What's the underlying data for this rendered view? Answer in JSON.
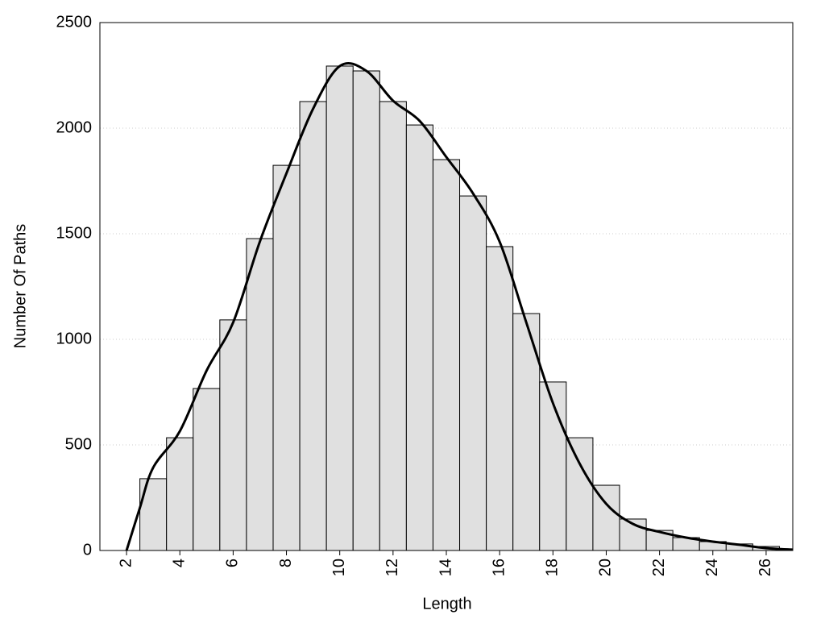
{
  "chart_data": {
    "type": "histogram",
    "x_label": "Length",
    "y_label": "Number Of Paths",
    "bins": [
      2.5,
      3.5,
      4.5,
      5.5,
      6.5,
      7.5,
      8.5,
      9.5,
      10.5,
      11.5,
      12.5,
      13.5,
      14.5,
      15.5,
      16.5,
      17.5,
      18.5,
      19.5,
      20.5,
      21.5,
      22.5,
      23.5,
      24.5,
      25.5,
      26.5
    ],
    "values": [
      340,
      534,
      767,
      1092,
      1477,
      1824,
      2126,
      2294,
      2271,
      2126,
      2015,
      1851,
      1679,
      1439,
      1122,
      798,
      534,
      309,
      149,
      95,
      61,
      42,
      31,
      19
    ],
    "color": "#e0e0e0",
    "curve": {
      "color": "#000000",
      "x": [
        2,
        2.5,
        3,
        4,
        5,
        6,
        7,
        8,
        9,
        10,
        11,
        12,
        13,
        14,
        15,
        16,
        17,
        18,
        19,
        20,
        21,
        22,
        23,
        24,
        25,
        26,
        27
      ],
      "values": [
        0,
        202,
        393,
        565,
        851,
        1080,
        1462,
        1786,
        2092,
        2294,
        2271,
        2130,
        2034,
        1863,
        1691,
        1462,
        1080,
        698,
        412,
        221,
        126,
        88,
        61,
        42,
        27,
        11,
        4
      ]
    },
    "xlim": [
      1,
      27
    ],
    "ylim": [
      0,
      2500
    ],
    "xticks": [
      2,
      4,
      6,
      8,
      10,
      12,
      14,
      16,
      18,
      20,
      22,
      24,
      26
    ],
    "yticks": [
      0,
      500,
      1000,
      1500,
      2000,
      2500
    ],
    "grid": true
  }
}
